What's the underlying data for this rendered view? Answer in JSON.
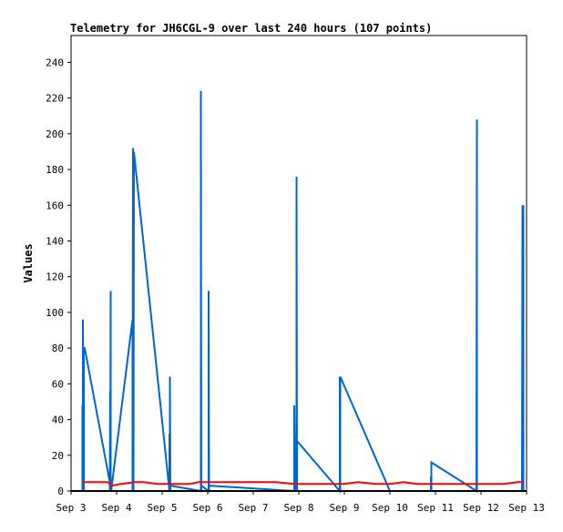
{
  "chart_data": {
    "type": "line",
    "title": "Telemetry for JH6CGL-9 over last 240 hours (107 points)",
    "xlabel": "",
    "ylabel": "Values",
    "xlim": [
      0,
      10
    ],
    "ylim": [
      0,
      255
    ],
    "yticks": [
      0,
      20,
      40,
      60,
      80,
      100,
      120,
      140,
      160,
      180,
      200,
      220,
      240
    ],
    "xticks": [
      {
        "pos": 0,
        "label": "Sep 3"
      },
      {
        "pos": 1,
        "label": "Sep 4"
      },
      {
        "pos": 2,
        "label": "Sep 5"
      },
      {
        "pos": 3,
        "label": "Sep 6"
      },
      {
        "pos": 4,
        "label": "Sep 7"
      },
      {
        "pos": 5,
        "label": "Sep 8"
      },
      {
        "pos": 6,
        "label": "Sep 9"
      },
      {
        "pos": 7,
        "label": "Sep 10"
      },
      {
        "pos": 8,
        "label": "Sep 11"
      },
      {
        "pos": 9,
        "label": "Sep 12"
      },
      {
        "pos": 10,
        "label": "Sep 13"
      }
    ],
    "grid": false,
    "series": [
      {
        "color": "#0066cc",
        "x": [
          0.25,
          0.25,
          0.26,
          0.26,
          0.28,
          0.28,
          0.3,
          0.85,
          0.85,
          0.86,
          0.86,
          0.87,
          0.87,
          0.88,
          0.88,
          1.35,
          1.35,
          1.36,
          1.36,
          1.37,
          1.37,
          1.38,
          2.16,
          2.16,
          2.17,
          2.17,
          2.18,
          2.18,
          2.85,
          2.85,
          2.86,
          2.86,
          3.02,
          3.02,
          3.03,
          3.03,
          4.9,
          4.9,
          4.92,
          4.92,
          4.95,
          4.95,
          4.96,
          4.96,
          5.9,
          5.9,
          5.91,
          5.91,
          7.0,
          7.9,
          7.9,
          7.91,
          7.91,
          8.9,
          8.9,
          8.91,
          8.91,
          9.9,
          9.9,
          9.91,
          9.91,
          9.92,
          9.92,
          9.93,
          9.93
        ],
        "y": [
          0,
          48,
          0,
          96,
          0,
          80,
          80,
          5,
          0,
          56,
          0,
          112,
          0,
          3,
          0,
          96,
          0,
          192,
          0,
          190,
          0,
          190,
          0,
          32,
          0,
          64,
          0,
          3,
          0,
          224,
          0,
          3,
          0,
          112,
          0,
          3,
          0,
          48,
          0,
          20,
          0,
          176,
          0,
          28,
          0,
          64,
          0,
          64,
          0,
          0,
          8,
          0,
          16,
          0,
          0,
          208,
          0,
          0,
          0,
          160,
          0,
          80,
          0,
          160,
          0
        ]
      },
      {
        "color": "#ff0000",
        "x": [
          0.25,
          0.5,
          0.8,
          0.9,
          1.1,
          1.4,
          1.6,
          1.9,
          2.1,
          2.3,
          2.6,
          2.8,
          3.0,
          3.3,
          3.6,
          4.0,
          4.5,
          4.9,
          5.3,
          5.7,
          6.0,
          6.3,
          6.7,
          7.0,
          7.3,
          7.6,
          8.0,
          8.5,
          9.0,
          9.5,
          9.8,
          9.93
        ],
        "y": [
          5,
          5,
          5,
          3,
          4,
          5,
          5,
          4,
          4,
          4,
          4,
          5,
          5,
          5,
          5,
          5,
          5,
          4,
          4,
          4,
          4,
          5,
          4,
          4,
          5,
          4,
          4,
          4,
          4,
          4,
          5,
          5
        ]
      },
      {
        "color": "#000000",
        "x": [
          0.0,
          10.0
        ],
        "y": [
          0,
          0
        ]
      }
    ]
  }
}
